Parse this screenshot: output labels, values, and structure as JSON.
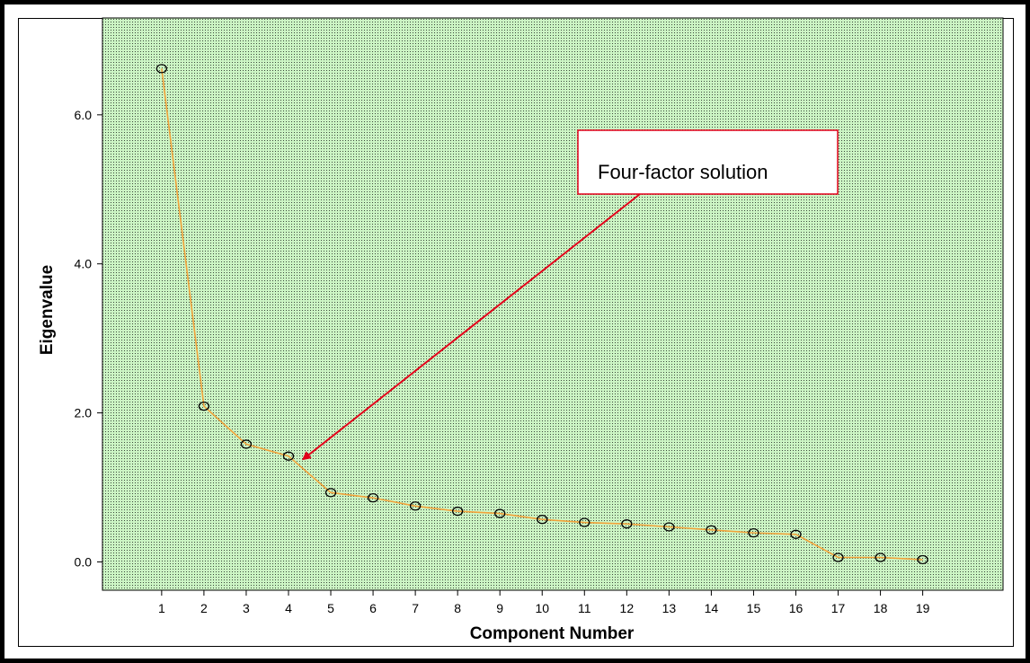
{
  "chart_data": {
    "type": "line",
    "title": "",
    "xlabel": "Component Number",
    "ylabel": "Eigenvalue",
    "x": [
      1,
      2,
      3,
      4,
      5,
      6,
      7,
      8,
      9,
      10,
      11,
      12,
      13,
      14,
      15,
      16,
      17,
      18,
      19
    ],
    "series": [
      {
        "values": [
          6.62,
          2.09,
          1.58,
          1.42,
          0.93,
          0.86,
          0.75,
          0.68,
          0.65,
          0.57,
          0.53,
          0.51,
          0.47,
          0.43,
          0.39,
          0.37,
          0.06,
          0.06,
          0.03
        ]
      }
    ],
    "yticks": [
      "0.0",
      "2.0",
      "4.0",
      "6.0"
    ],
    "xticks": [
      "1",
      "2",
      "3",
      "4",
      "5",
      "6",
      "7",
      "8",
      "9",
      "10",
      "11",
      "12",
      "13",
      "14",
      "15",
      "16",
      "17",
      "18",
      "19"
    ],
    "ylim": [
      -0.38,
      7.3
    ],
    "xlim": [
      -0.4,
      20.9
    ],
    "grid": false,
    "annotation": {
      "text": "Four-factor solution",
      "points_to_component": 4.35,
      "points_to_value": 1.38
    },
    "colors": {
      "plot_background": "#ccf5c4",
      "line": "#f2a23a",
      "marker": "#000000",
      "callout_border": "#e2001a",
      "arrow": "#e2001a"
    }
  }
}
